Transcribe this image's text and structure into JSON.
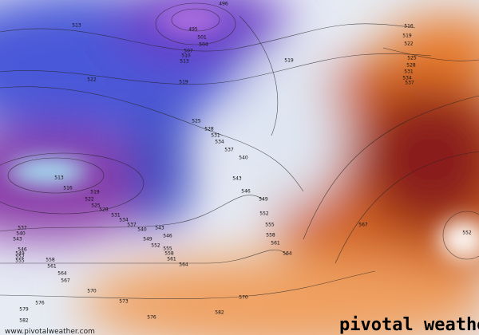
{
  "map": {
    "contour_labels": [
      496,
      495,
      501,
      504,
      507,
      510,
      513,
      513,
      519,
      519,
      522,
      525,
      528,
      531,
      534,
      537,
      540,
      543,
      546,
      549,
      552,
      555,
      558,
      561,
      564,
      567,
      552,
      516,
      519,
      522,
      525,
      528,
      531,
      534,
      537,
      513,
      516,
      519,
      522,
      525,
      528,
      531,
      534,
      537,
      540,
      543,
      546,
      549,
      552,
      555,
      558,
      561,
      564,
      537,
      540,
      543,
      546,
      549,
      552,
      555,
      558,
      561,
      564,
      567,
      570,
      573,
      576,
      579,
      576,
      582,
      570,
      582
    ],
    "logo": "pivotal weather",
    "url": "www.pivotalweather.com"
  }
}
